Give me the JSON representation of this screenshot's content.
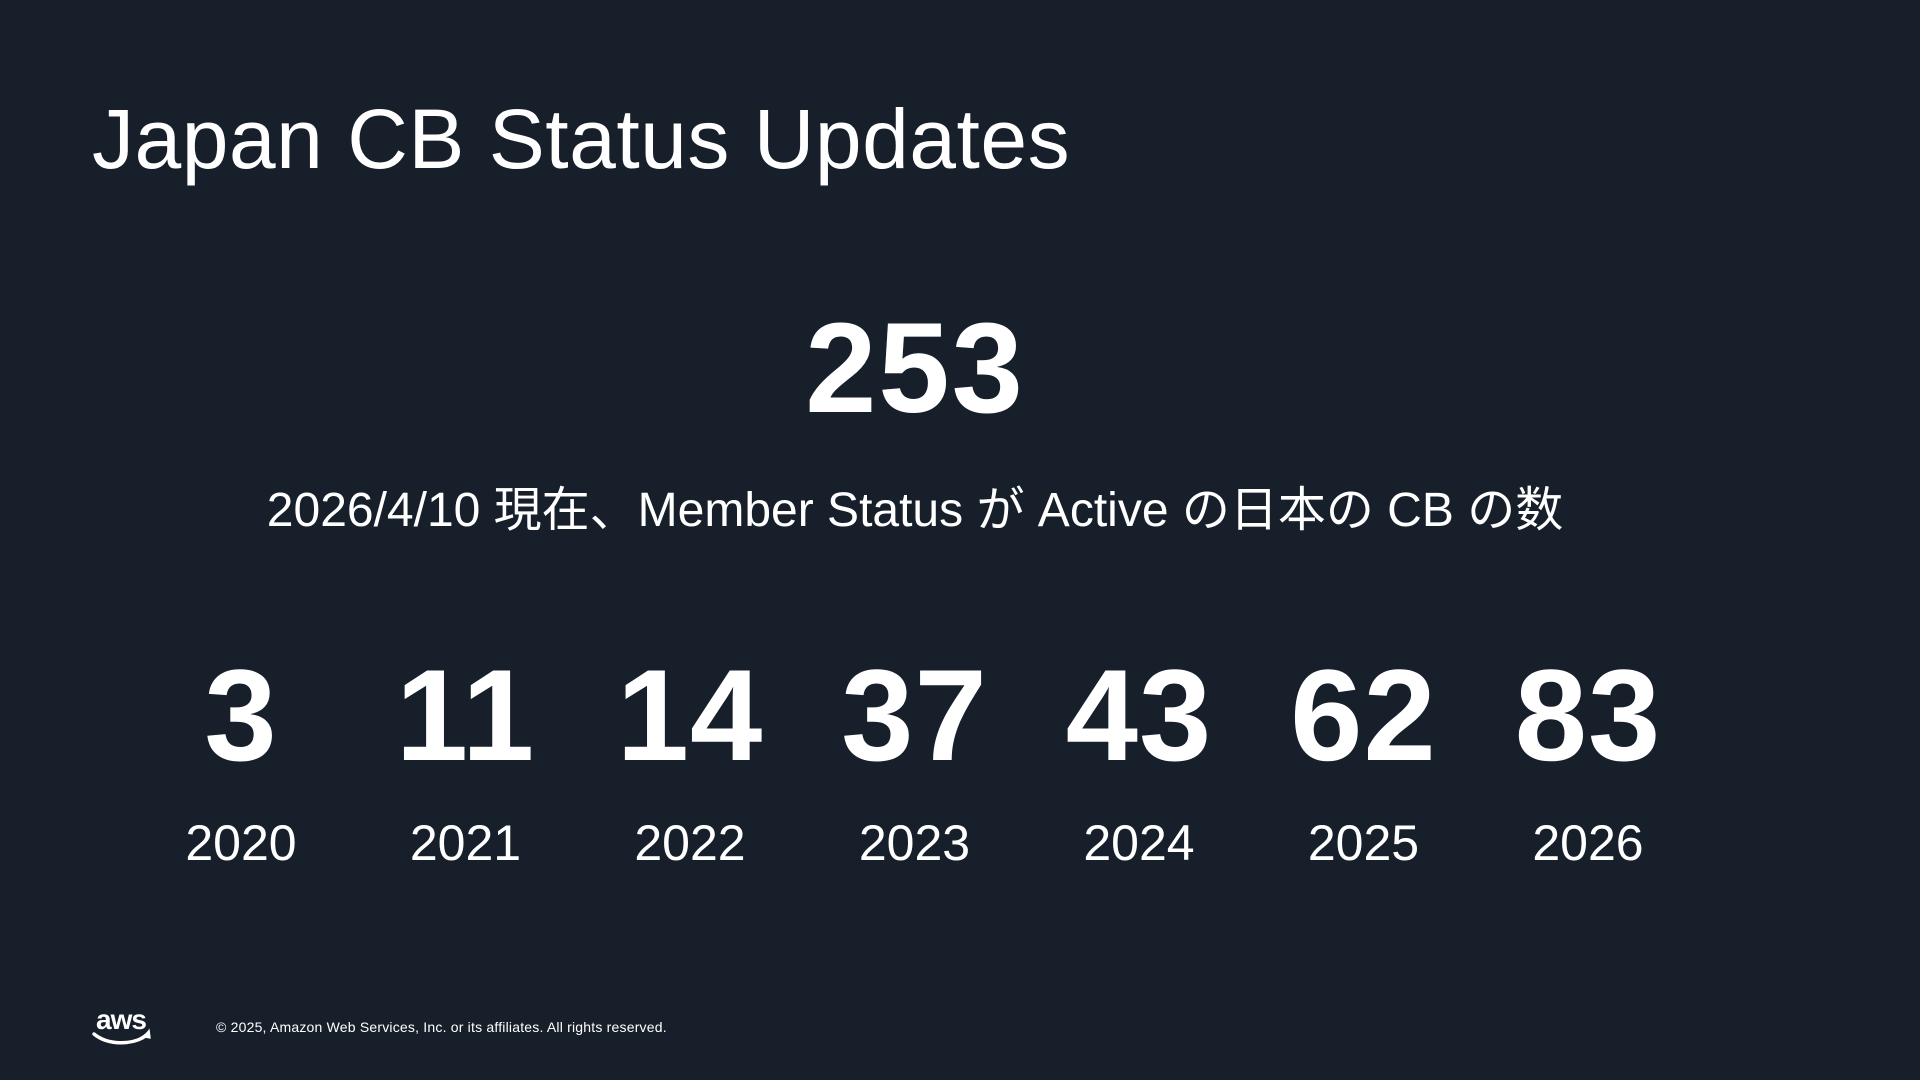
{
  "colors": {
    "background": "#171F2B",
    "text": "#FFFFFF"
  },
  "slide": {
    "title": "Japan CB Status Updates",
    "kpi": {
      "value": "253",
      "caption": "2026/4/10 現在、Member Status が Active の日本の CB の数"
    },
    "footer": {
      "logo_text": "aws",
      "copyright": "© 2025, Amazon Web Services, Inc. or its affiliates. All rights reserved."
    }
  },
  "chart_data": {
    "type": "table",
    "title": "Japan CB Status Updates",
    "kpi_value": 253,
    "kpi_label": "2026/4/10 現在、Member Status が Active の日本の CB の数",
    "categories": [
      "2020",
      "2021",
      "2022",
      "2023",
      "2024",
      "2025",
      "2026"
    ],
    "values": [
      3,
      11,
      14,
      37,
      43,
      62,
      83
    ],
    "legend_position": "none",
    "grid": false
  }
}
